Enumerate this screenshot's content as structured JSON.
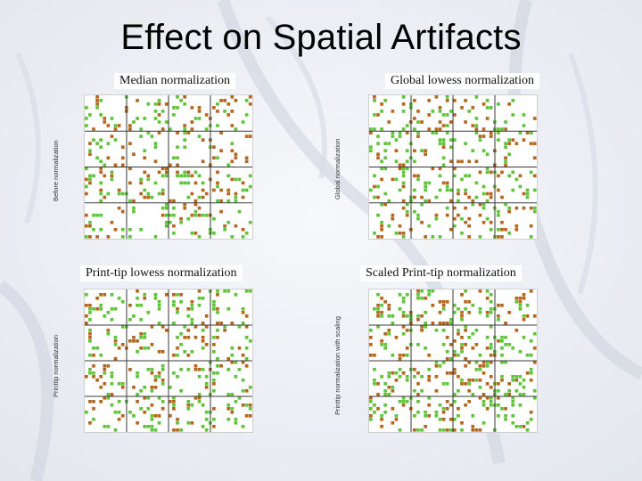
{
  "slide": {
    "title": "Effect on Spatial Artifacts"
  },
  "panels": [
    {
      "title": "Median normalization",
      "side_label": "Before normalization"
    },
    {
      "title": "Global lowess normalization",
      "side_label": "Global normalization"
    },
    {
      "title": "Print-tip lowess normalization",
      "side_label": "Printtip normalization"
    },
    {
      "title": "Scaled Print-tip normalization",
      "side_label": "Printtip normalization with scaling"
    }
  ],
  "colors": {
    "spot_red": "#b5651d",
    "spot_green": "#5ec43a",
    "grid_line": "#3a3a3a",
    "background": "#f4f5f8"
  }
}
